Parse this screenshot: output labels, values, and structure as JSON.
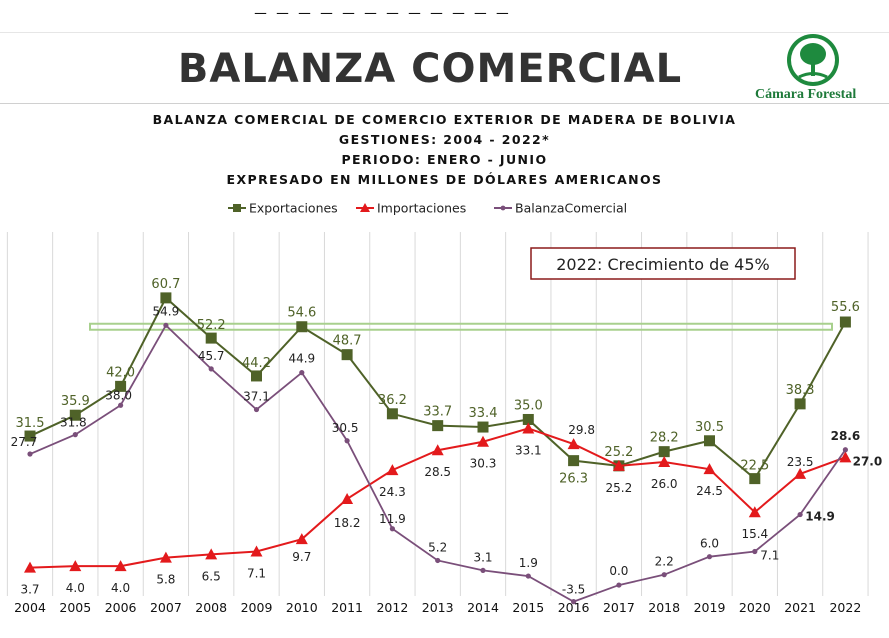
{
  "header": {
    "title": "BALANZA COMERCIAL",
    "logo_text": "Cámara Forestal",
    "top_strip_text": "_ _ _ _ _ _ _ _ _ _ _ _"
  },
  "chart_data": {
    "type": "line",
    "title_lines": [
      "BALANZA COMERCIAL DE COMERCIO EXTERIOR DE MADERA DE BOLIVIA",
      "GESTIONES: 2004 - 2022*",
      "PERIODO: ENERO - JUNIO",
      "EXPRESADO EN MILLONES DE DÓLARES AMERICANOS"
    ],
    "categories": [
      "2004",
      "2005",
      "2006",
      "2007",
      "2008",
      "2009",
      "2010",
      "2011",
      "2012",
      "2013",
      "2014",
      "2015",
      "2016",
      "2017",
      "2018",
      "2019",
      "2020",
      "2021",
      "2022"
    ],
    "series": [
      {
        "name": "Exportaciones",
        "color": "#4f6228",
        "marker": "square",
        "values": [
          31.5,
          35.9,
          42.0,
          60.7,
          52.2,
          44.2,
          54.6,
          48.7,
          36.2,
          33.7,
          33.4,
          35.0,
          26.3,
          25.2,
          28.2,
          30.5,
          22.5,
          38.3,
          55.6
        ],
        "labels": [
          "31.5",
          "35.9",
          "42.0",
          "60.7",
          "52.2",
          "44.2",
          "54.6",
          "48.7",
          "36.2",
          "33.7",
          "33.4",
          "35.0",
          "26.3",
          "25.2",
          "28.2",
          "30.5",
          "22.5",
          "38.3",
          "55.6"
        ]
      },
      {
        "name": "Importaciones",
        "color": "#e31a1c",
        "marker": "triangle",
        "values": [
          3.7,
          4.0,
          4.0,
          5.8,
          6.5,
          7.1,
          9.7,
          18.2,
          24.3,
          28.5,
          30.3,
          33.1,
          29.8,
          25.2,
          26.0,
          24.5,
          15.4,
          23.5,
          27.0
        ],
        "labels": [
          "3.7",
          "4.0",
          "4.0",
          "5.8",
          "6.5",
          "7.1",
          "9.7",
          "18.2",
          "24.3",
          "28.5",
          "30.3",
          "33.1",
          "29.8",
          "25.2",
          "26.0",
          "24.5",
          "15.4",
          "23.5",
          "27.0"
        ]
      },
      {
        "name": "BalanzaComercial",
        "color": "#7a4f7a",
        "marker": "diamond",
        "values": [
          27.7,
          31.8,
          38.0,
          54.9,
          45.7,
          37.1,
          44.9,
          30.5,
          11.9,
          5.2,
          3.1,
          1.9,
          -3.5,
          0.0,
          2.2,
          6.0,
          7.1,
          14.9,
          28.6
        ],
        "labels": [
          "27.7",
          "31.8",
          "38.0",
          "54.9",
          "45.7",
          "37.1",
          "44.9",
          "30.5",
          "11.9",
          "5.2",
          "3.1",
          "1.9",
          "-3.5",
          "0.0",
          "2.2",
          "6.0",
          "7.1",
          "14.9",
          "28.6"
        ]
      }
    ],
    "annotation": "2022: Crecimiento de 45%",
    "reference_line_value": 54.6,
    "ylim": [
      -4,
      63
    ],
    "grid": "vertical",
    "legend_position": "top-center"
  },
  "colors": {
    "reference_line": "#a8d08d",
    "annotation_border": "#8b1a1a",
    "grid": "#d9d9d9"
  }
}
